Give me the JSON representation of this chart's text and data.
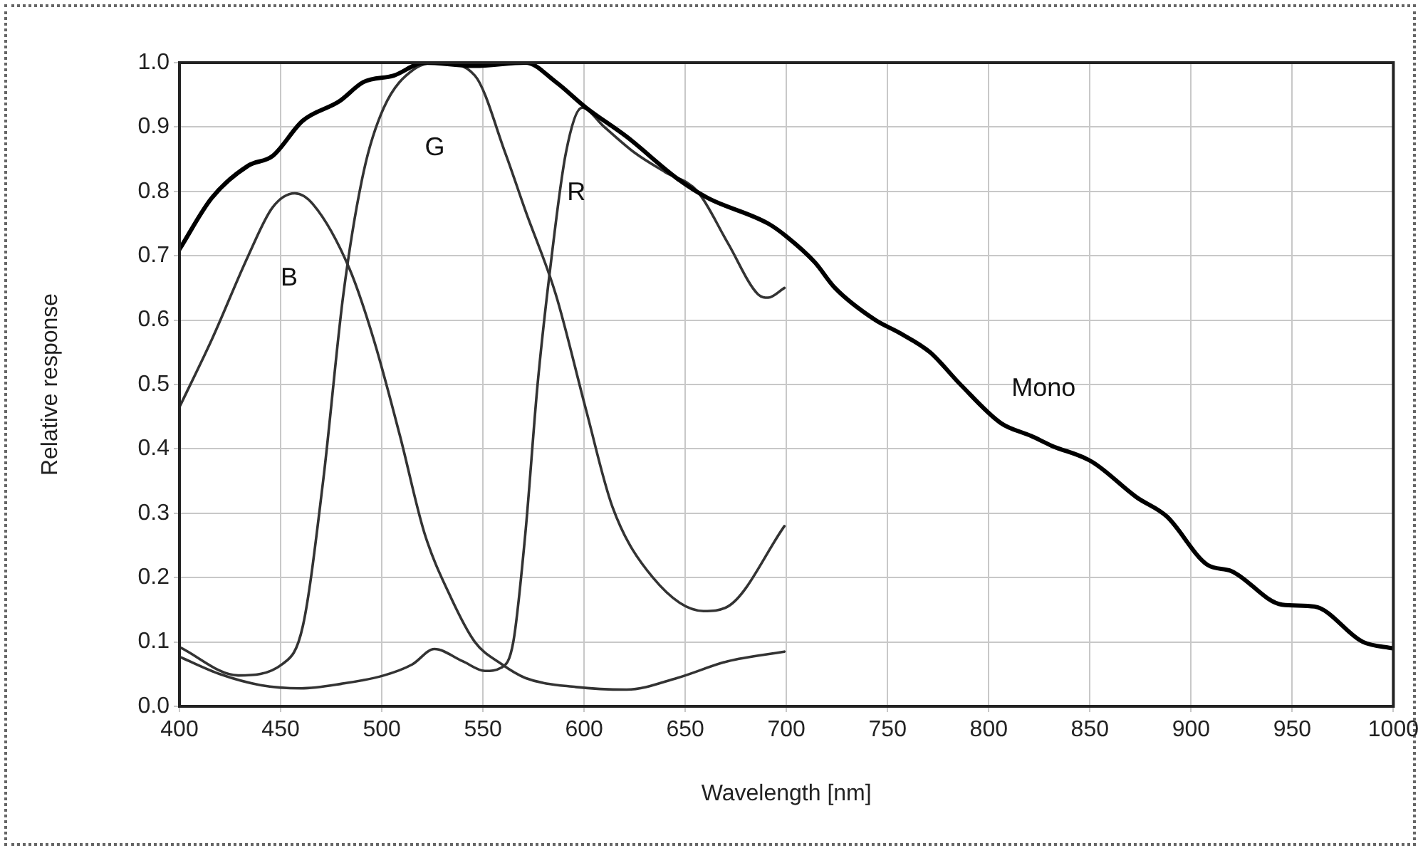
{
  "chart_data": {
    "type": "line",
    "xlabel": "Wavelength [nm]",
    "ylabel": "Relative response",
    "xlim": [
      400,
      1000
    ],
    "ylim": [
      0,
      1
    ],
    "xticks": [
      400,
      450,
      500,
      550,
      600,
      650,
      700,
      750,
      800,
      850,
      900,
      950,
      1000
    ],
    "yticks": [
      {
        "value": 0,
        "label": "0.0"
      },
      {
        "value": 0.1,
        "label": "0.1"
      },
      {
        "value": 0.2,
        "label": "0.2"
      },
      {
        "value": 0.3,
        "label": "0.3"
      },
      {
        "value": 0.4,
        "label": "0.4"
      },
      {
        "value": 0.5,
        "label": "0.5"
      },
      {
        "value": 0.6,
        "label": "0.6"
      },
      {
        "value": 0.7,
        "label": "0.7"
      },
      {
        "value": 0.8,
        "label": "0.8"
      },
      {
        "value": 0.9,
        "label": "0.9"
      },
      {
        "value": 1,
        "label": "1.0"
      }
    ],
    "grid": true,
    "legend": false,
    "marker": "none",
    "line_style": "solid",
    "series": [
      {
        "name": "Mono",
        "color": "#000000",
        "x": [
          400,
          416,
          434,
          446,
          461,
          479,
          491,
          506,
          521,
          546,
          571,
          586,
          601,
          621,
          646,
          661,
          691,
          700,
          714,
          724,
          744,
          756,
          771,
          786,
          806,
          821,
          831,
          851,
          873,
          888,
          908,
          920,
          945,
          961,
          985,
          1000
        ],
        "values": [
          0.71,
          0.79,
          0.84,
          0.855,
          0.91,
          0.94,
          0.97,
          0.98,
          1.0,
          0.995,
          1.0,
          0.97,
          0.93,
          0.885,
          0.82,
          0.79,
          0.75,
          0.73,
          0.69,
          0.65,
          0.6,
          0.58,
          0.55,
          0.5,
          0.44,
          0.42,
          0.405,
          0.38,
          0.325,
          0.295,
          0.22,
          0.21,
          0.158,
          0.155,
          0.1,
          0.09
        ]
      },
      {
        "name": "B",
        "color": "#333333",
        "x": [
          400,
          416,
          434,
          446,
          457,
          466,
          484,
          496,
          509,
          521,
          534,
          546,
          559,
          571,
          596,
          621,
          646,
          671,
          699
        ],
        "values": [
          0.465,
          0.57,
          0.7,
          0.775,
          0.797,
          0.78,
          0.68,
          0.57,
          0.42,
          0.27,
          0.17,
          0.1,
          0.066,
          0.044,
          0.03,
          0.026,
          0.044,
          0.07,
          0.085
        ]
      },
      {
        "name": "G",
        "color": "#333333",
        "x": [
          400,
          429,
          451,
          461,
          471,
          481,
          491,
          501,
          516,
          529,
          546,
          561,
          571,
          586,
          601,
          614,
          634,
          659,
          671,
          699
        ],
        "values": [
          0.092,
          0.048,
          0.066,
          0.125,
          0.35,
          0.64,
          0.83,
          0.93,
          0.99,
          1.0,
          0.98,
          0.86,
          0.77,
          0.64,
          0.46,
          0.31,
          0.2,
          0.148,
          0.155,
          0.28
        ]
      },
      {
        "name": "R",
        "color": "#333333",
        "x": [
          400,
          420,
          440,
          460,
          480,
          501,
          515,
          526,
          540,
          551,
          559,
          565,
          571,
          577,
          584,
          591,
          599,
          610,
          625,
          640,
          656,
          671,
          686,
          691,
          699
        ],
        "values": [
          0.077,
          0.05,
          0.033,
          0.028,
          0.035,
          0.048,
          0.065,
          0.089,
          0.07,
          0.055,
          0.06,
          0.1,
          0.27,
          0.5,
          0.7,
          0.86,
          0.93,
          0.9,
          0.86,
          0.83,
          0.8,
          0.72,
          0.64,
          0.635,
          0.65
        ]
      }
    ]
  }
}
